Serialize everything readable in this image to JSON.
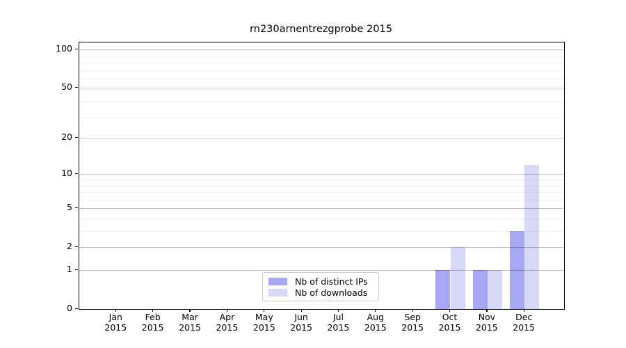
{
  "chart_data": {
    "type": "bar",
    "title": "rn230arnentrezgprobe 2015",
    "x_tick_labels": [
      {
        "line1": "Jan",
        "line2": "2015"
      },
      {
        "line1": "Feb",
        "line2": "2015"
      },
      {
        "line1": "Mar",
        "line2": "2015"
      },
      {
        "line1": "Apr",
        "line2": "2015"
      },
      {
        "line1": "May",
        "line2": "2015"
      },
      {
        "line1": "Jun",
        "line2": "2015"
      },
      {
        "line1": "Jul",
        "line2": "2015"
      },
      {
        "line1": "Aug",
        "line2": "2015"
      },
      {
        "line1": "Sep",
        "line2": "2015"
      },
      {
        "line1": "Oct",
        "line2": "2015"
      },
      {
        "line1": "Nov",
        "line2": "2015"
      },
      {
        "line1": "Dec",
        "line2": "2015"
      }
    ],
    "series": [
      {
        "name": "Nb of distinct IPs",
        "color": "#a7a7f3",
        "values": [
          0,
          0,
          0,
          0,
          0,
          0,
          0,
          0,
          0,
          1,
          1,
          3
        ]
      },
      {
        "name": "Nb of downloads",
        "color": "#d8d8f8",
        "values": [
          0,
          0,
          0,
          0,
          0,
          0,
          0,
          0,
          0,
          2,
          1,
          12
        ]
      }
    ],
    "y_ticks": [
      0,
      1,
      2,
      5,
      10,
      20,
      50,
      100
    ],
    "y_scale": "log10(1+y)",
    "ylim": [
      0,
      115
    ],
    "xlabel": "",
    "ylabel": "",
    "grid": "both-horizontal",
    "legend_position": "lower-center-inside"
  },
  "colors": {
    "background": "#ffffff",
    "axis": "#000000",
    "major_grid": "#c9c9c9",
    "minor_grid": "#efefef",
    "legend_border": "#cccccc"
  }
}
